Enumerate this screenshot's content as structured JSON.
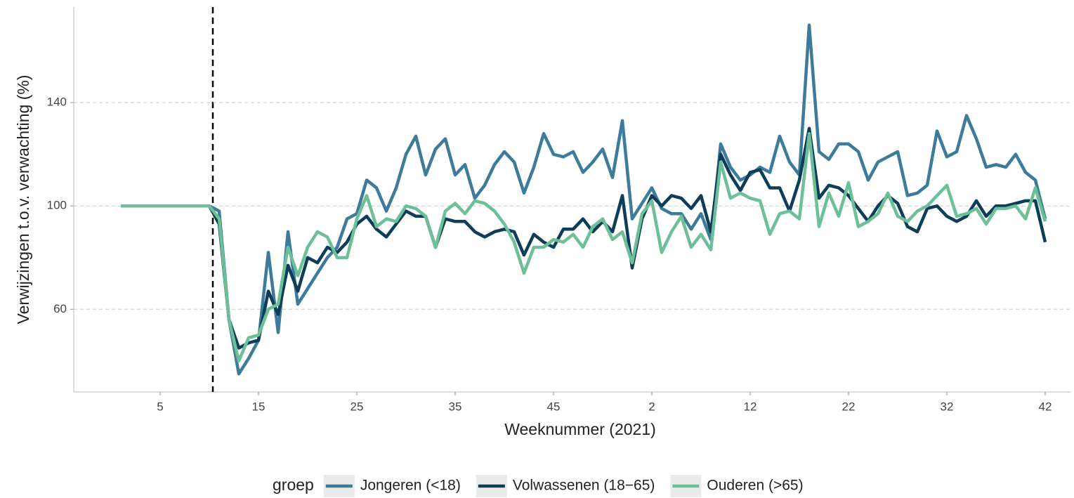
{
  "chart_data": {
    "type": "line",
    "x_label": "Weeknummer (2021)",
    "y_label": "Verwijzingen t.o.v. verwachting (%)",
    "legend_title": "groep",
    "legend_position": "bottom",
    "grid": true,
    "ylim": [
      28,
      177
    ],
    "yticks": [
      60,
      100,
      140
    ],
    "categories": [
      null,
      null,
      null,
      null,
      "5",
      null,
      null,
      null,
      null,
      null,
      null,
      null,
      null,
      null,
      "15",
      null,
      null,
      null,
      null,
      null,
      null,
      null,
      null,
      null,
      "25",
      null,
      null,
      null,
      null,
      null,
      null,
      null,
      null,
      null,
      "35",
      null,
      null,
      null,
      null,
      null,
      null,
      null,
      null,
      null,
      "45",
      null,
      null,
      null,
      null,
      null,
      null,
      null,
      null,
      null,
      "2",
      null,
      null,
      null,
      null,
      null,
      null,
      null,
      null,
      null,
      "12",
      null,
      null,
      null,
      null,
      null,
      null,
      null,
      null,
      null,
      "22",
      null,
      null,
      null,
      null,
      null,
      null,
      null,
      null,
      null,
      "32",
      null,
      null,
      null,
      null,
      null,
      null,
      null,
      null,
      null,
      "42"
    ],
    "series": [
      {
        "name": "Jongeren (<18)",
        "color": "#3d7b9b",
        "values": [
          100,
          100,
          100,
          100,
          100,
          100,
          100,
          100,
          100,
          100,
          98,
          56,
          35,
          41,
          48,
          82,
          51,
          90,
          62,
          68,
          74,
          80,
          84,
          95,
          97,
          110,
          107,
          98,
          107,
          120,
          127,
          112,
          122,
          126,
          112,
          116,
          103,
          108,
          116,
          121,
          117,
          105,
          115,
          128,
          120,
          119,
          121,
          113,
          117,
          122,
          111,
          133,
          95,
          101,
          107,
          99,
          97,
          97,
          91,
          97,
          87,
          124,
          115,
          110,
          112,
          115,
          113,
          127,
          117,
          112,
          170,
          121,
          118,
          124,
          124,
          121,
          110,
          117,
          119,
          121,
          104,
          105,
          108,
          129,
          119,
          121,
          135,
          126,
          115,
          116,
          115,
          120,
          113,
          110,
          95
        ]
      },
      {
        "name": "Volwassenen (18−65)",
        "color": "#0e3d5a",
        "values": [
          100,
          100,
          100,
          100,
          100,
          100,
          100,
          100,
          100,
          100,
          93,
          56,
          45,
          47,
          48,
          67,
          58,
          77,
          67,
          80,
          78,
          84,
          82,
          86,
          93,
          96,
          91,
          88,
          93,
          98,
          96,
          96,
          84,
          95,
          94,
          94,
          90,
          88,
          90,
          91,
          90,
          81,
          89,
          86,
          84,
          91,
          91,
          95,
          90,
          94,
          90,
          104,
          76,
          95,
          104,
          100,
          104,
          103,
          99,
          104,
          90,
          120,
          112,
          106,
          113,
          114,
          107,
          107,
          98,
          110,
          130,
          103,
          108,
          107,
          104,
          99,
          94,
          100,
          104,
          101,
          92,
          90,
          99,
          100,
          96,
          94,
          96,
          102,
          96,
          100,
          100,
          101,
          102,
          102,
          86
        ]
      },
      {
        "name": "Ouderen (>65)",
        "color": "#6dbf98",
        "values": [
          100,
          100,
          100,
          100,
          100,
          100,
          100,
          100,
          100,
          100,
          95,
          56,
          40,
          49,
          50,
          60,
          62,
          84,
          73,
          84,
          90,
          88,
          80,
          80,
          95,
          104,
          92,
          95,
          94,
          100,
          99,
          96,
          84,
          98,
          101,
          97,
          102,
          101,
          98,
          93,
          86,
          74,
          84,
          84,
          87,
          86,
          89,
          84,
          92,
          95,
          87,
          90,
          78,
          97,
          102,
          82,
          90,
          96,
          84,
          89,
          83,
          117,
          103,
          105,
          103,
          102,
          89,
          97,
          98,
          95,
          128,
          92,
          105,
          96,
          109,
          92,
          94,
          97,
          105,
          96,
          94,
          98,
          100,
          104,
          108,
          96,
          97,
          99,
          93,
          99,
          99,
          100,
          95,
          107,
          94
        ]
      }
    ]
  }
}
